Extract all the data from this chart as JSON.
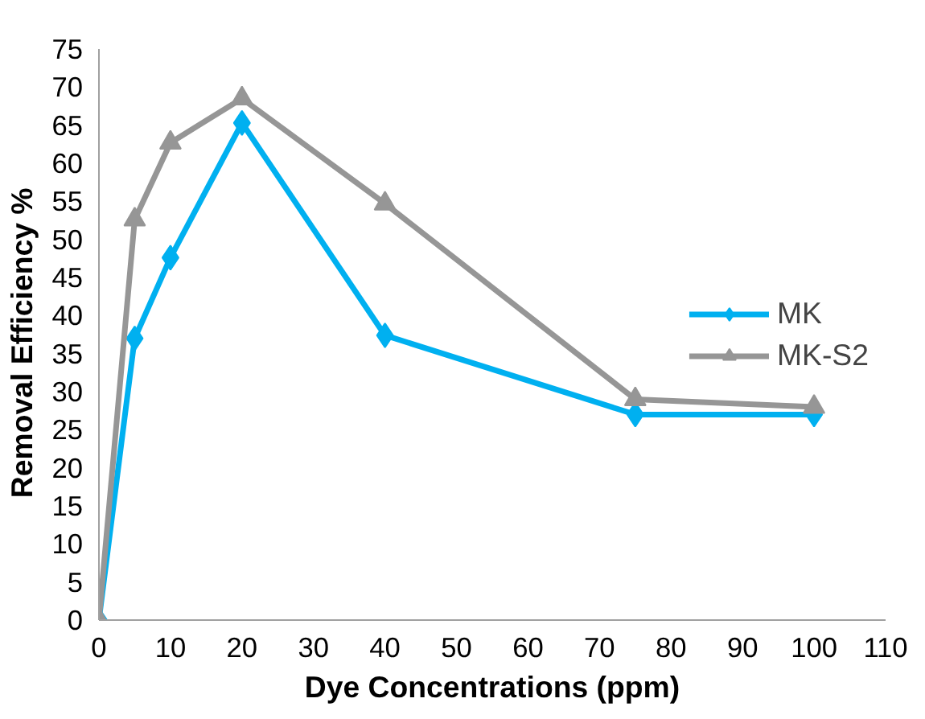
{
  "chart_data": {
    "type": "line",
    "xlabel": "Dye Concentrations (ppm)",
    "ylabel": "Removal Efficiency   %",
    "x": [
      0,
      5,
      10,
      20,
      40,
      75,
      100
    ],
    "series": [
      {
        "name": "MK",
        "color": "#00b0f0",
        "marker": "diamond",
        "values": [
          0,
          37,
          47.6,
          65.3,
          37.4,
          27,
          27
        ]
      },
      {
        "name": "MK-S2",
        "color": "#969696",
        "marker": "triangle",
        "values": [
          0,
          52.6,
          62.7,
          68.5,
          54.7,
          29,
          28
        ]
      }
    ],
    "xlim": [
      0,
      110
    ],
    "xticks": [
      0,
      10,
      20,
      30,
      40,
      50,
      60,
      70,
      80,
      90,
      100,
      110
    ],
    "ylim": [
      0,
      75
    ],
    "yticks": [
      0,
      5,
      10,
      15,
      20,
      25,
      30,
      35,
      40,
      45,
      50,
      55,
      60,
      65,
      70,
      75
    ],
    "grid": false,
    "legend": "right",
    "line_style": "solid"
  }
}
